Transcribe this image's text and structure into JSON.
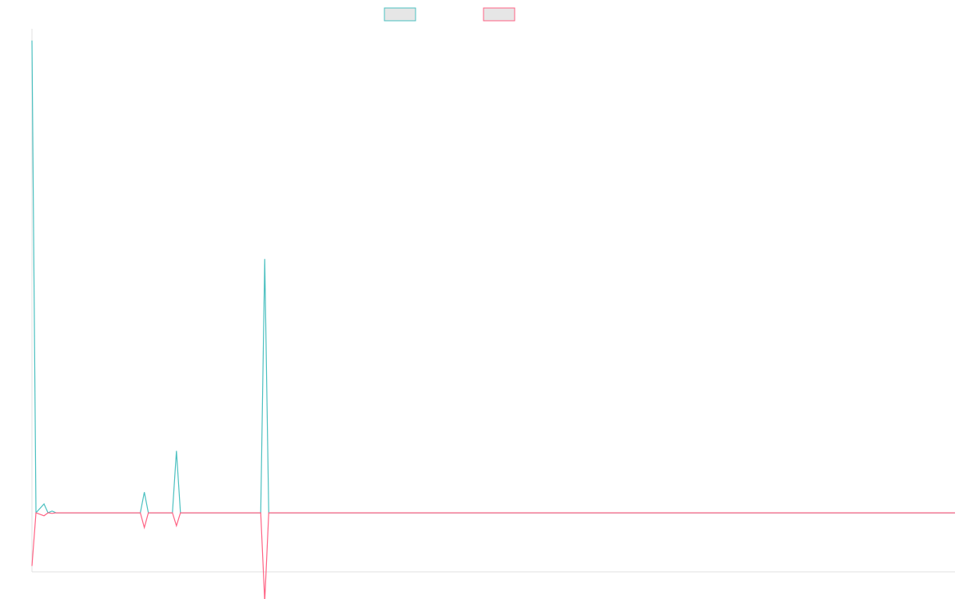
{
  "chart_data": {
    "type": "line",
    "title": "",
    "xlabel": "",
    "ylabel": "",
    "grid": false,
    "legend_position": "top",
    "x_count": 231,
    "ylim": [
      -100,
      820
    ],
    "series": [
      {
        "color": "#4bc0c0",
        "fill": "#e6e6e6",
        "points": [
          [
            0,
            800
          ],
          [
            1,
            0
          ],
          [
            3,
            15
          ],
          [
            4,
            0
          ],
          [
            5,
            3
          ],
          [
            6,
            0
          ],
          [
            27,
            0
          ],
          [
            28,
            35
          ],
          [
            29,
            0
          ],
          [
            35,
            0
          ],
          [
            36,
            105
          ],
          [
            37,
            0
          ],
          [
            57,
            0
          ],
          [
            58,
            430
          ],
          [
            59,
            0
          ],
          [
            230,
            0
          ]
        ]
      },
      {
        "color": "#ff6384",
        "fill": "#e6e6e6",
        "points": [
          [
            0,
            -90
          ],
          [
            1,
            0
          ],
          [
            3,
            -5
          ],
          [
            4,
            0
          ],
          [
            5,
            -1
          ],
          [
            6,
            0
          ],
          [
            27,
            0
          ],
          [
            28,
            -25
          ],
          [
            29,
            0
          ],
          [
            35,
            0
          ],
          [
            36,
            -22
          ],
          [
            37,
            0
          ],
          [
            57,
            0
          ],
          [
            58,
            -150
          ],
          [
            59,
            0
          ],
          [
            230,
            0
          ]
        ]
      }
    ]
  }
}
